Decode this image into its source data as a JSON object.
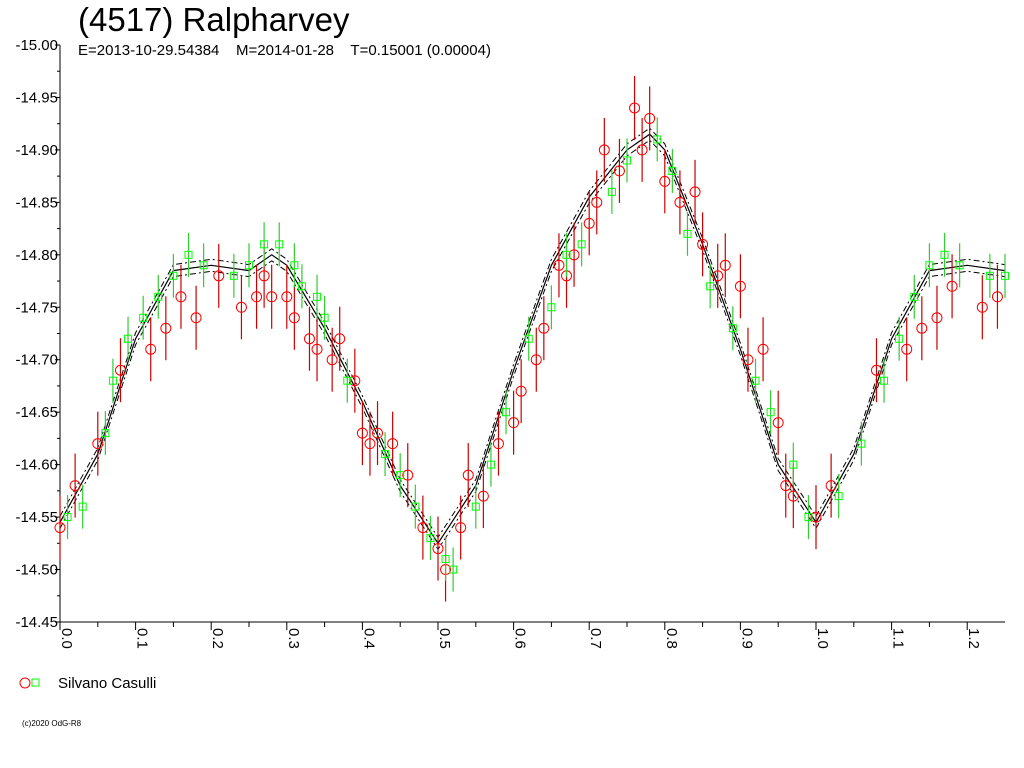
{
  "header": {
    "title": "(4517) Ralpharvey",
    "subtitle": "E=2013-10-29.54384    M=2014-01-28    T=0.15001 (0.00004)"
  },
  "legend": {
    "label": "Silvano Casulli"
  },
  "footer": {
    "copyright": "(c)2020 OdG-R8"
  },
  "chart_data": {
    "type": "scatter",
    "xlim": [
      0.0,
      1.25
    ],
    "ylim": [
      -15.0,
      -14.45
    ],
    "y_inverted": true,
    "x_ticks": [
      "0.0",
      "0.1",
      "0.2",
      "0.3",
      "0.4",
      "0.5",
      "0.6",
      "0.7",
      "0.8",
      "0.9",
      "1.0",
      "1.1",
      "1.2"
    ],
    "y_ticks": [
      "-15.00",
      "-14.95",
      "-14.90",
      "-14.85",
      "-14.80",
      "-14.75",
      "-14.70",
      "-14.65",
      "-14.60",
      "-14.55",
      "-14.50",
      "-14.45"
    ],
    "colors": {
      "circle": "#ff0000",
      "square": "#00ff00",
      "errorbar": "#cc0000",
      "curve": "#000000"
    },
    "fit_curve": {
      "x": [
        0.0,
        0.05,
        0.1,
        0.15,
        0.2,
        0.25,
        0.28,
        0.3,
        0.35,
        0.4,
        0.45,
        0.5,
        0.55,
        0.6,
        0.65,
        0.7,
        0.75,
        0.78,
        0.8,
        0.85,
        0.9,
        0.95,
        1.0,
        1.05,
        1.1,
        1.15,
        1.2,
        1.25
      ],
      "y": [
        -14.545,
        -14.61,
        -14.72,
        -14.785,
        -14.79,
        -14.785,
        -14.8,
        -14.79,
        -14.73,
        -14.66,
        -14.58,
        -14.525,
        -14.58,
        -14.69,
        -14.79,
        -14.855,
        -14.9,
        -14.915,
        -14.9,
        -14.81,
        -14.71,
        -14.6,
        -14.545,
        -14.61,
        -14.72,
        -14.785,
        -14.79,
        -14.785
      ]
    },
    "series": [
      {
        "name": "Silvano Casulli",
        "marker": "circle",
        "points": [
          [
            0.0,
            -14.54
          ],
          [
            0.02,
            -14.58
          ],
          [
            0.05,
            -14.62
          ],
          [
            0.08,
            -14.69
          ],
          [
            0.12,
            -14.71
          ],
          [
            0.14,
            -14.73
          ],
          [
            0.16,
            -14.76
          ],
          [
            0.18,
            -14.74
          ],
          [
            0.21,
            -14.78
          ],
          [
            0.24,
            -14.75
          ],
          [
            0.26,
            -14.76
          ],
          [
            0.27,
            -14.78
          ],
          [
            0.28,
            -14.76
          ],
          [
            0.3,
            -14.76
          ],
          [
            0.31,
            -14.74
          ],
          [
            0.33,
            -14.72
          ],
          [
            0.34,
            -14.71
          ],
          [
            0.36,
            -14.7
          ],
          [
            0.37,
            -14.72
          ],
          [
            0.39,
            -14.68
          ],
          [
            0.4,
            -14.63
          ],
          [
            0.41,
            -14.62
          ],
          [
            0.42,
            -14.63
          ],
          [
            0.44,
            -14.62
          ],
          [
            0.46,
            -14.59
          ],
          [
            0.48,
            -14.54
          ],
          [
            0.5,
            -14.52
          ],
          [
            0.51,
            -14.5
          ],
          [
            0.53,
            -14.54
          ],
          [
            0.54,
            -14.59
          ],
          [
            0.56,
            -14.57
          ],
          [
            0.58,
            -14.62
          ],
          [
            0.6,
            -14.64
          ],
          [
            0.61,
            -14.67
          ],
          [
            0.63,
            -14.7
          ],
          [
            0.64,
            -14.73
          ],
          [
            0.66,
            -14.79
          ],
          [
            0.67,
            -14.78
          ],
          [
            0.68,
            -14.8
          ],
          [
            0.7,
            -14.83
          ],
          [
            0.71,
            -14.85
          ],
          [
            0.72,
            -14.9
          ],
          [
            0.74,
            -14.88
          ],
          [
            0.76,
            -14.94
          ],
          [
            0.77,
            -14.9
          ],
          [
            0.78,
            -14.93
          ],
          [
            0.8,
            -14.87
          ],
          [
            0.82,
            -14.85
          ],
          [
            0.84,
            -14.86
          ],
          [
            0.85,
            -14.81
          ],
          [
            0.87,
            -14.78
          ],
          [
            0.88,
            -14.79
          ],
          [
            0.9,
            -14.77
          ],
          [
            0.91,
            -14.7
          ],
          [
            0.93,
            -14.71
          ],
          [
            0.95,
            -14.64
          ],
          [
            0.96,
            -14.58
          ],
          [
            0.97,
            -14.57
          ],
          [
            1.0,
            -14.55
          ],
          [
            1.02,
            -14.58
          ],
          [
            1.08,
            -14.69
          ],
          [
            1.12,
            -14.71
          ],
          [
            1.14,
            -14.73
          ],
          [
            1.16,
            -14.74
          ],
          [
            1.18,
            -14.77
          ],
          [
            1.22,
            -14.75
          ],
          [
            1.24,
            -14.76
          ]
        ]
      },
      {
        "name": "",
        "marker": "square",
        "points": [
          [
            0.01,
            -14.55
          ],
          [
            0.03,
            -14.56
          ],
          [
            0.06,
            -14.63
          ],
          [
            0.07,
            -14.68
          ],
          [
            0.09,
            -14.72
          ],
          [
            0.11,
            -14.74
          ],
          [
            0.13,
            -14.76
          ],
          [
            0.15,
            -14.78
          ],
          [
            0.17,
            -14.8
          ],
          [
            0.19,
            -14.79
          ],
          [
            0.23,
            -14.78
          ],
          [
            0.25,
            -14.79
          ],
          [
            0.27,
            -14.81
          ],
          [
            0.29,
            -14.81
          ],
          [
            0.31,
            -14.79
          ],
          [
            0.32,
            -14.77
          ],
          [
            0.34,
            -14.76
          ],
          [
            0.35,
            -14.74
          ],
          [
            0.38,
            -14.68
          ],
          [
            0.43,
            -14.61
          ],
          [
            0.45,
            -14.59
          ],
          [
            0.47,
            -14.56
          ],
          [
            0.49,
            -14.53
          ],
          [
            0.51,
            -14.51
          ],
          [
            0.52,
            -14.5
          ],
          [
            0.55,
            -14.56
          ],
          [
            0.57,
            -14.6
          ],
          [
            0.59,
            -14.65
          ],
          [
            0.62,
            -14.72
          ],
          [
            0.65,
            -14.75
          ],
          [
            0.67,
            -14.8
          ],
          [
            0.69,
            -14.81
          ],
          [
            0.73,
            -14.86
          ],
          [
            0.75,
            -14.89
          ],
          [
            0.79,
            -14.91
          ],
          [
            0.81,
            -14.88
          ],
          [
            0.83,
            -14.82
          ],
          [
            0.86,
            -14.77
          ],
          [
            0.89,
            -14.73
          ],
          [
            0.92,
            -14.68
          ],
          [
            0.94,
            -14.65
          ],
          [
            0.97,
            -14.6
          ],
          [
            0.99,
            -14.55
          ],
          [
            1.03,
            -14.57
          ],
          [
            1.06,
            -14.62
          ],
          [
            1.09,
            -14.68
          ],
          [
            1.11,
            -14.72
          ],
          [
            1.13,
            -14.76
          ],
          [
            1.15,
            -14.79
          ],
          [
            1.17,
            -14.8
          ],
          [
            1.19,
            -14.79
          ],
          [
            1.23,
            -14.78
          ],
          [
            1.25,
            -14.78
          ]
        ]
      }
    ]
  }
}
